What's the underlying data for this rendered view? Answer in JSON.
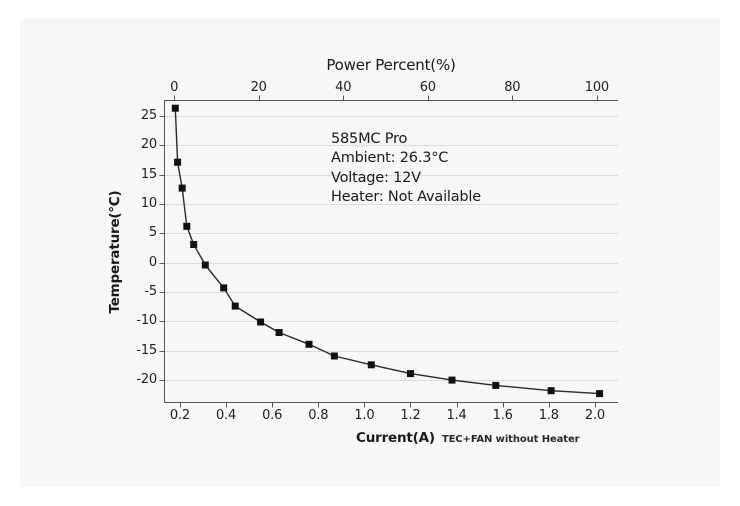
{
  "page": {
    "bg": "#ffffff",
    "panel_bg": "#f7f7f7"
  },
  "chart_data": {
    "type": "line",
    "top_axis": {
      "title": "Power Percent(%)",
      "ticks": [
        0,
        20,
        40,
        60,
        80,
        100
      ],
      "range": [
        -2.4,
        105.0
      ]
    },
    "x_axis": {
      "label": "Current(A)",
      "note": "TEC+FAN without Heater",
      "ticks": [
        0.2,
        0.4,
        0.6,
        0.8,
        1.0,
        1.2,
        1.4,
        1.6,
        1.8,
        2.0
      ],
      "range": [
        0.131,
        2.1
      ]
    },
    "y_axis": {
      "label": "Temperature(℃)",
      "ticks": [
        25,
        20,
        15,
        10,
        5,
        0,
        -5,
        -10,
        -15,
        -20
      ],
      "range": [
        -23.9,
        27.7
      ]
    },
    "grid": "horizontal-only",
    "legend": "none",
    "series": [
      {
        "name": "TEC+FAN without Heater",
        "marker": "square",
        "color": "#1c1c1c",
        "points": [
          [
            0.18,
            26.3
          ],
          [
            0.19,
            17.1
          ],
          [
            0.21,
            12.7
          ],
          [
            0.23,
            6.2
          ],
          [
            0.26,
            3.1
          ],
          [
            0.31,
            -0.4
          ],
          [
            0.39,
            -4.3
          ],
          [
            0.44,
            -7.4
          ],
          [
            0.55,
            -10.1
          ],
          [
            0.63,
            -11.9
          ],
          [
            0.76,
            -13.9
          ],
          [
            0.87,
            -15.9
          ],
          [
            1.03,
            -17.4
          ],
          [
            1.2,
            -18.9
          ],
          [
            1.38,
            -20.0
          ],
          [
            1.57,
            -20.9
          ],
          [
            1.81,
            -21.8
          ],
          [
            2.02,
            -22.3
          ]
        ]
      }
    ],
    "annotation": [
      "585MC Pro",
      "Ambient: 26.3°C",
      "Voltage: 12V",
      "Heater: Not Available"
    ],
    "colors": {
      "grid": "#dcdcdc",
      "spine": "#555555",
      "line": "#2a2a2a",
      "marker": "#111111",
      "text": "#1a1a1a"
    }
  }
}
